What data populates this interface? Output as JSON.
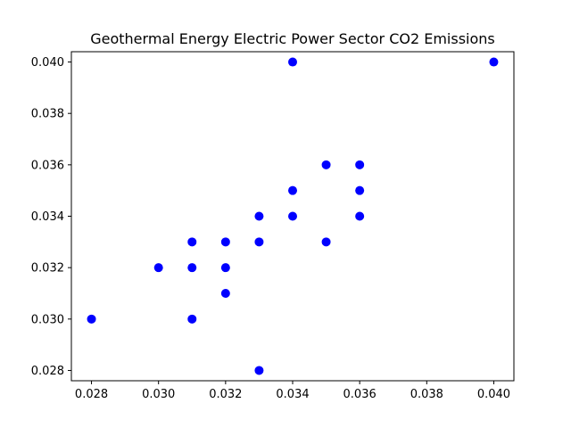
{
  "chart_data": {
    "type": "scatter",
    "title": "Geothermal Energy Electric Power Sector CO2 Emissions",
    "xlabel": "",
    "ylabel": "",
    "xlim": [
      0.0274,
      0.0406
    ],
    "ylim": [
      0.0276,
      0.0404
    ],
    "x_ticks": [
      "0.028",
      "0.030",
      "0.032",
      "0.034",
      "0.036",
      "0.038",
      "0.040"
    ],
    "y_ticks": [
      "0.028",
      "0.030",
      "0.032",
      "0.034",
      "0.036",
      "0.038",
      "0.040"
    ],
    "grid": false,
    "marker_color": "#0000ff",
    "points": [
      {
        "x": 0.028,
        "y": 0.03
      },
      {
        "x": 0.03,
        "y": 0.032
      },
      {
        "x": 0.031,
        "y": 0.033
      },
      {
        "x": 0.031,
        "y": 0.032
      },
      {
        "x": 0.031,
        "y": 0.03
      },
      {
        "x": 0.032,
        "y": 0.033
      },
      {
        "x": 0.032,
        "y": 0.032
      },
      {
        "x": 0.032,
        "y": 0.031
      },
      {
        "x": 0.033,
        "y": 0.034
      },
      {
        "x": 0.033,
        "y": 0.033
      },
      {
        "x": 0.033,
        "y": 0.028
      },
      {
        "x": 0.034,
        "y": 0.04
      },
      {
        "x": 0.034,
        "y": 0.035
      },
      {
        "x": 0.034,
        "y": 0.034
      },
      {
        "x": 0.035,
        "y": 0.036
      },
      {
        "x": 0.035,
        "y": 0.033
      },
      {
        "x": 0.036,
        "y": 0.036
      },
      {
        "x": 0.036,
        "y": 0.035
      },
      {
        "x": 0.036,
        "y": 0.034
      },
      {
        "x": 0.04,
        "y": 0.04
      }
    ]
  }
}
